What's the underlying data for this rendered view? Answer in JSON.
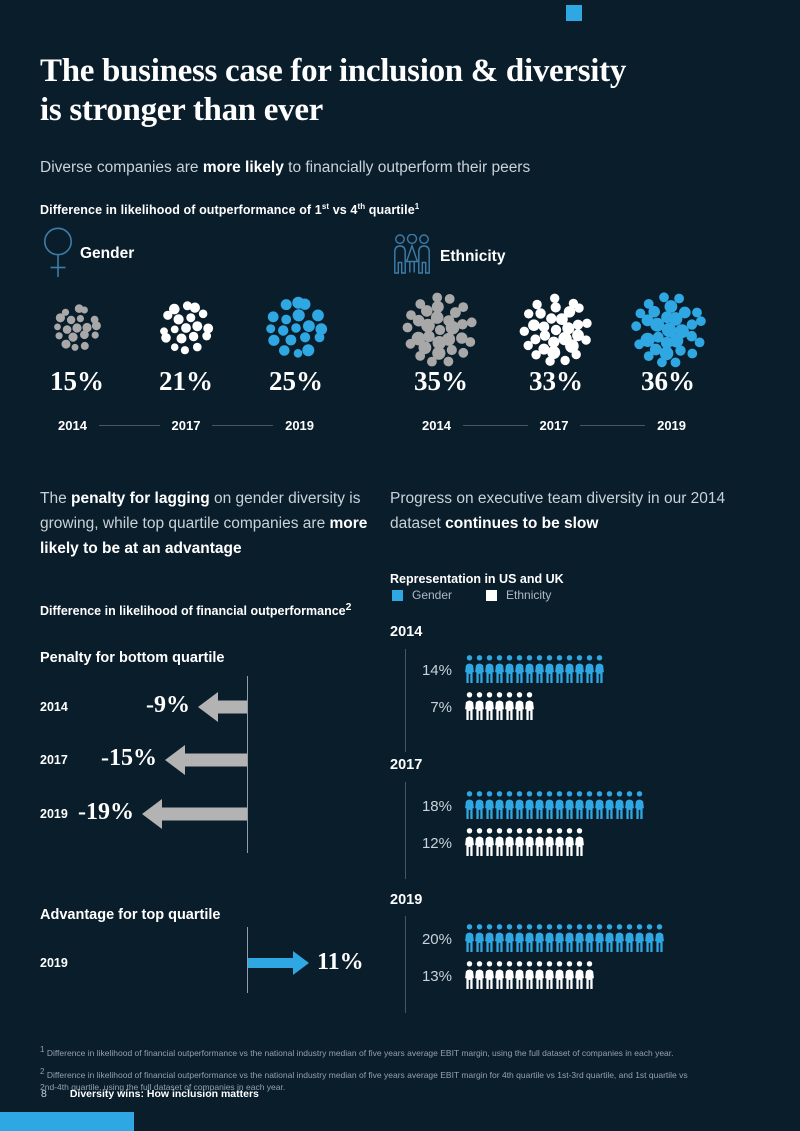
{
  "theme": {
    "background": "#0a1d2b",
    "accent": "#2fa7e2",
    "gray": "#a8a8a8",
    "white": "#ffffff",
    "text_light": "#c9d2d8",
    "icon_outline": "#3d7ea8",
    "line_dim": "#47565f",
    "axis_line": "#aab6bf",
    "footnote": "#93a1ab"
  },
  "header": {
    "title_line1": "The business case for inclusion & diversity",
    "title_line2": "is stronger than ever",
    "intro_pre": "Diverse companies are ",
    "intro_bold": "more likely",
    "intro_post": " to financially outperform their peers"
  },
  "exhibit1": {
    "heading": {
      "pre": "Difference in likelihood of outperformance of 1",
      "sup1": "st",
      "mid": " vs 4",
      "sup2": "th",
      "post": " quartile",
      "fn_marker": "1"
    },
    "groups": [
      {
        "label": "Gender",
        "icon": "female-symbol-icon",
        "years": [
          "2014",
          "2017",
          "2019"
        ],
        "values": [
          "15%",
          "21%",
          "25%"
        ],
        "clusters": [
          {
            "color": "#a8a8a8",
            "diameter": 50,
            "dots": 19,
            "seed": 1
          },
          {
            "color": "#ffffff",
            "diameter": 57,
            "dots": 19,
            "seed": 2
          },
          {
            "color": "#2fa7e2",
            "diameter": 65,
            "dots": 19,
            "seed": 3
          }
        ]
      },
      {
        "label": "Ethnicity",
        "icon": "people-group-icon",
        "years": [
          "2014",
          "2017",
          "2019"
        ],
        "values": [
          "35%",
          "33%",
          "36%"
        ],
        "clusters": [
          {
            "color": "#a8a8a8",
            "diameter": 75,
            "dots": 31,
            "seed": 4
          },
          {
            "color": "#ffffff",
            "diameter": 73,
            "dots": 31,
            "seed": 5
          },
          {
            "color": "#2fa7e2",
            "diameter": 76,
            "dots": 31,
            "seed": 6
          }
        ]
      }
    ]
  },
  "left_col": {
    "para": {
      "pre": "The ",
      "b1": "penalty for lagging",
      "mid": " on gender diversity is growing, while top quartile companies are ",
      "b2": "more likely to be at an advantage"
    },
    "heading": {
      "text": "Difference in likelihood of financial outperformance",
      "fn_marker": "2"
    },
    "penalty": {
      "title": "Penalty for bottom quartile",
      "rows": [
        {
          "year": "2014",
          "value": "-9%",
          "len": 49,
          "dir": "left",
          "color": "#b3b3b3"
        },
        {
          "year": "2017",
          "value": "-15%",
          "len": 82,
          "dir": "left",
          "color": "#b3b3b3"
        },
        {
          "year": "2019",
          "value": "-19%",
          "len": 105,
          "dir": "left",
          "color": "#b3b3b3"
        }
      ]
    },
    "advantage": {
      "title": "Advantage for top quartile",
      "rows": [
        {
          "year": "2019",
          "value": "11%",
          "len": 61,
          "dir": "right",
          "color": "#2fa7e2"
        }
      ]
    }
  },
  "right_col": {
    "para": {
      "pre": "Progress on executive team diversity in our 2014 dataset ",
      "b1": "continues to be slow"
    },
    "chart_title": "Representation in US and UK",
    "legend": [
      {
        "label": "Gender",
        "color": "#2fa7e2"
      },
      {
        "label": "Ethnicity",
        "color": "#ffffff"
      }
    ],
    "years": [
      {
        "year": "2014",
        "rows": [
          {
            "value": "14%",
            "count": 14,
            "color": "#2fa7e2"
          },
          {
            "value": "7%",
            "count": 7,
            "color": "#ffffff"
          }
        ]
      },
      {
        "year": "2017",
        "rows": [
          {
            "value": "18%",
            "count": 18,
            "color": "#2fa7e2"
          },
          {
            "value": "12%",
            "count": 12,
            "color": "#ffffff"
          }
        ]
      },
      {
        "year": "2019",
        "rows": [
          {
            "value": "20%",
            "count": 20,
            "color": "#2fa7e2"
          },
          {
            "value": "13%",
            "count": 13,
            "color": "#ffffff"
          }
        ]
      }
    ]
  },
  "footnotes": [
    {
      "marker": "1",
      "text": " Difference in likelihood of financial outperformance vs the national industry median of five years average EBIT margin, using the full dataset of companies in each year."
    },
    {
      "marker": "2",
      "text": " Difference in likelihood of financial outperformance vs the national industry median of five years average EBIT margin for 4th quartile vs 1st-3rd quartile, and 1st quartile vs 2nd-4th quartile, using the full dataset of companies in each year."
    }
  ],
  "footer": {
    "page_number": "8",
    "title": "Diversity wins: How inclusion matters"
  },
  "chart_data": [
    {
      "type": "pictogram",
      "title": "Difference in likelihood of outperformance of 1st vs 4th quartile",
      "categories": [
        "2014",
        "2017",
        "2019"
      ],
      "series": [
        {
          "name": "Gender",
          "values": [
            15,
            21,
            25
          ]
        },
        {
          "name": "Ethnicity",
          "values": [
            35,
            33,
            36
          ]
        }
      ],
      "unit": "%",
      "notes": "dot clusters sized by value; 2014 gray, 2017 white, 2019 blue"
    },
    {
      "type": "bar",
      "title": "Difference in likelihood of financial outperformance",
      "series": [
        {
          "name": "Penalty for bottom quartile",
          "categories": [
            "2014",
            "2017",
            "2019"
          ],
          "values": [
            -9,
            -15,
            -19
          ]
        },
        {
          "name": "Advantage for top quartile",
          "categories": [
            "2019"
          ],
          "values": [
            11
          ]
        }
      ],
      "unit": "%",
      "notes": "horizontal arrows from a vertical baseline; negative gray pointing left, positive blue pointing right"
    },
    {
      "type": "pictogram",
      "title": "Representation in US and UK",
      "categories": [
        "2014",
        "2017",
        "2019"
      ],
      "series": [
        {
          "name": "Gender",
          "values": [
            14,
            18,
            20
          ]
        },
        {
          "name": "Ethnicity",
          "values": [
            7,
            12,
            13
          ]
        }
      ],
      "unit": "%",
      "legend_position": "top",
      "notes": "one person icon per percentage point; Gender blue, Ethnicity white"
    }
  ]
}
